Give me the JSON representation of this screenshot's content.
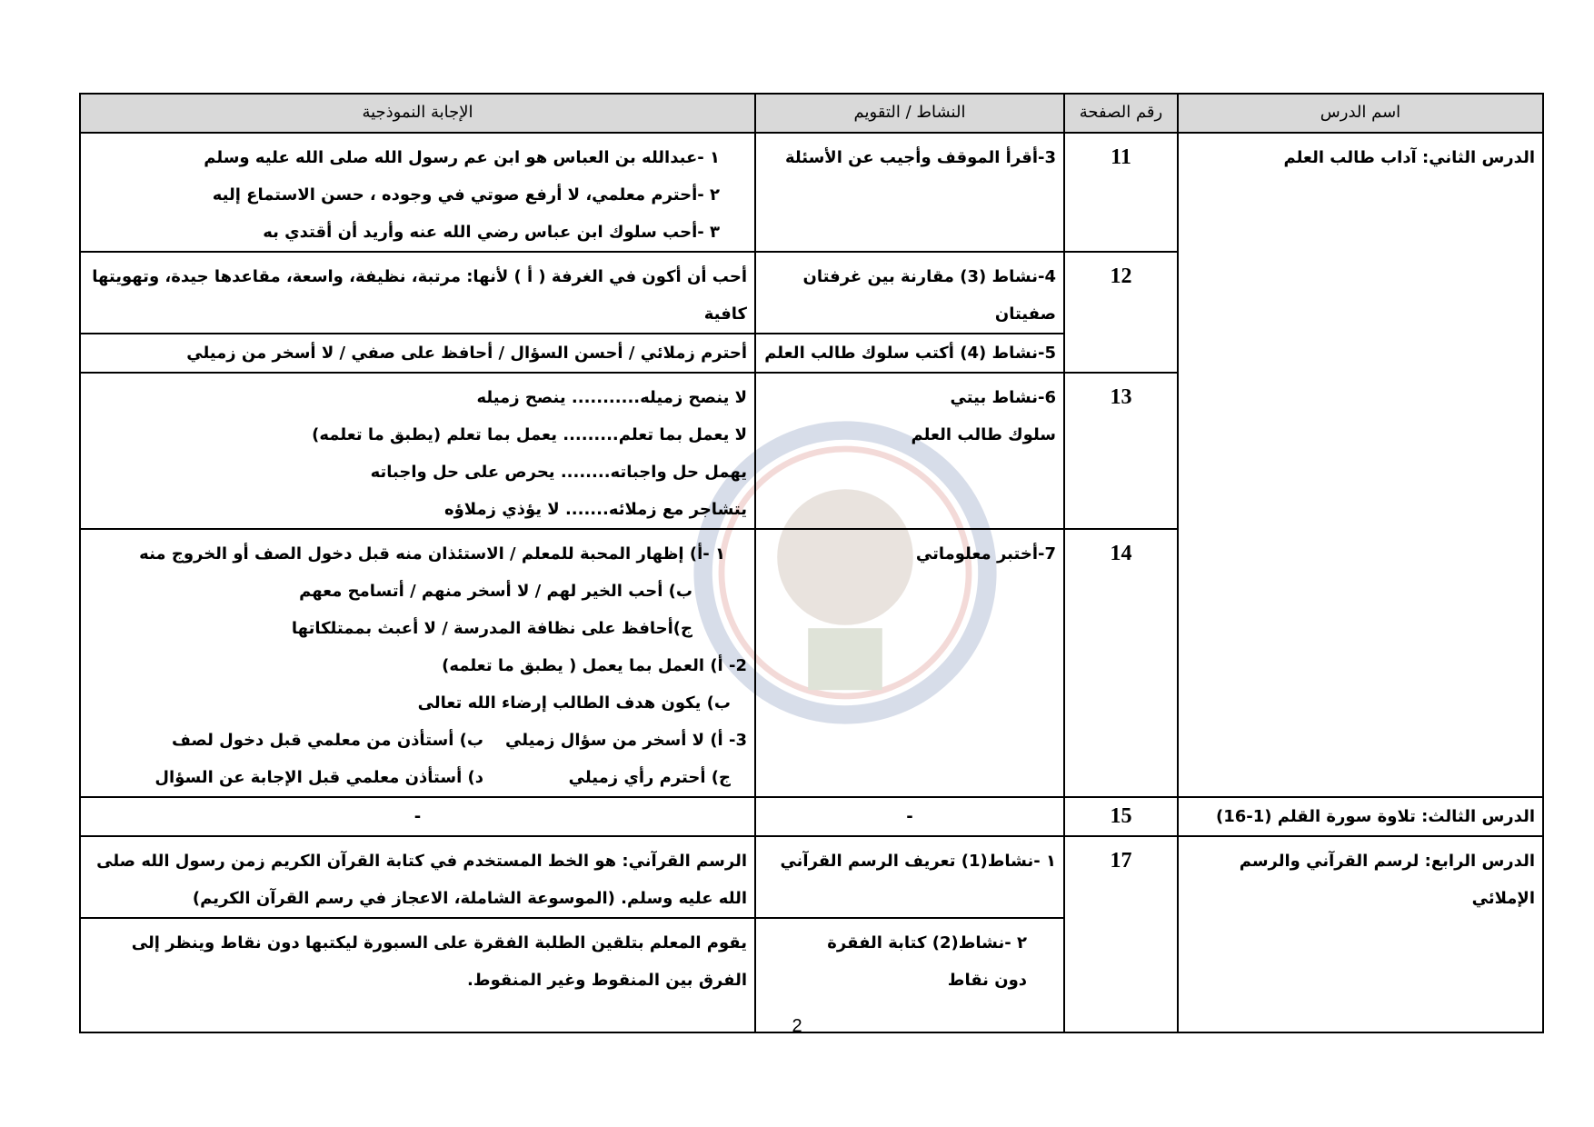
{
  "header": {
    "lesson": "اسم الدرس",
    "page": "رقم الصفحة",
    "activity": "النشاط / التقويم",
    "answer": "الإجابة النموذجية"
  },
  "rows": {
    "r1": {
      "lesson": "الدرس الثاني: آداب طالب العلم",
      "page": "11",
      "activity": "3-أقرأ الموقف وأجيب عن الأسئلة",
      "answer": [
        "١ -عبدالله بن العباس هو ابن عم رسول الله صلى الله عليه وسلم",
        "٢ -أحترم معلمي، لا أرفع صوتي في وجوده ، حسن الاستماع إليه",
        "٣ -أحب سلوك ابن عباس رضي الله عنه وأريد أن أقتدي به"
      ]
    },
    "r2": {
      "page": "12",
      "activity": "4-نشاط (3) مقارنة بين غرفتان صفيتان",
      "answer": "أحب أن أكون في الغرفة ( أ ) لأنها: مرتبة، نظيفة، واسعة، مقاعدها جيدة، وتهويتها كافية"
    },
    "r3": {
      "activity": "5-نشاط (4) أكتب سلوك طالب العلم",
      "answer": "أحترم زملائي / أحسن السؤال / أحافظ على صفي / لا أسخر من زميلي"
    },
    "r4": {
      "page": "13",
      "activity": [
        "6-نشاط بيتي",
        "سلوك طالب العلم"
      ],
      "answer": [
        "لا ينصح زميله........... ينصح زميله",
        "لا يعمل بما تعلم......... يعمل بما تعلم (يطبق ما تعلمه)",
        "يهمل حل واجباته........ يحرص على حل واجباته",
        "يتشاجر مع زملائه....... لا يؤذي زملاؤه"
      ]
    },
    "r5": {
      "page": "14",
      "activity": "7-أختبر معلوماتي",
      "answer": [
        "١ -أ) إظهار المحبة للمعلم / الاستئذان منه قبل دخول الصف أو الخروج منه",
        "ب) أحب الخير لهم / لا أسخر منهم / أتسامح معهم",
        "ج)أحافظ على نظافة المدرسة / لا أعبث بممتلكاتها",
        "2- أ) العمل بما يعمل ( يطبق ما تعلمه)",
        "ب) يكون هدف الطالب إرضاء الله تعالى",
        "3- أ) لا أسخر من سؤال زميلي",
        "ب) أستأذن من معلمي قبل دخول لصف",
        "ج) أحترم رأي زميلي",
        "د) أستأذن معلمي قبل الإجابة عن السؤال"
      ]
    },
    "r6": {
      "lesson": "الدرس الثالث: تلاوة سورة القلم (1-16)",
      "page": "15",
      "activity": "-",
      "answer": "-"
    },
    "r7": {
      "lesson": "الدرس الرابع: لرسم القرآني والرسم الإملائي",
      "page": "17",
      "activity": "١ -نشاط(1) تعريف الرسم القرآني",
      "answer": "الرسم القرآني: هو الخط المستخدم في كتابة القرآن الكريم زمن رسول الله صلى الله عليه وسلم. (الموسوعة الشاملة، الاعجاز في رسم القرآن الكريم)"
    },
    "r8": {
      "activity": "٢ -نشاط(2) كتابة الفقرة دون نقاط",
      "answer": "يقوم المعلم بتلقين الطلبة الفقرة على السبورة ليكتبها دون نقاط وينظر إلى الفرق بين المنقوط وغير المنقوط."
    }
  },
  "footer": {
    "page_number": "2"
  },
  "watermark": {
    "icon": "emblem-watermark",
    "colors": [
      "#2a4a8a",
      "#c0392b"
    ]
  }
}
